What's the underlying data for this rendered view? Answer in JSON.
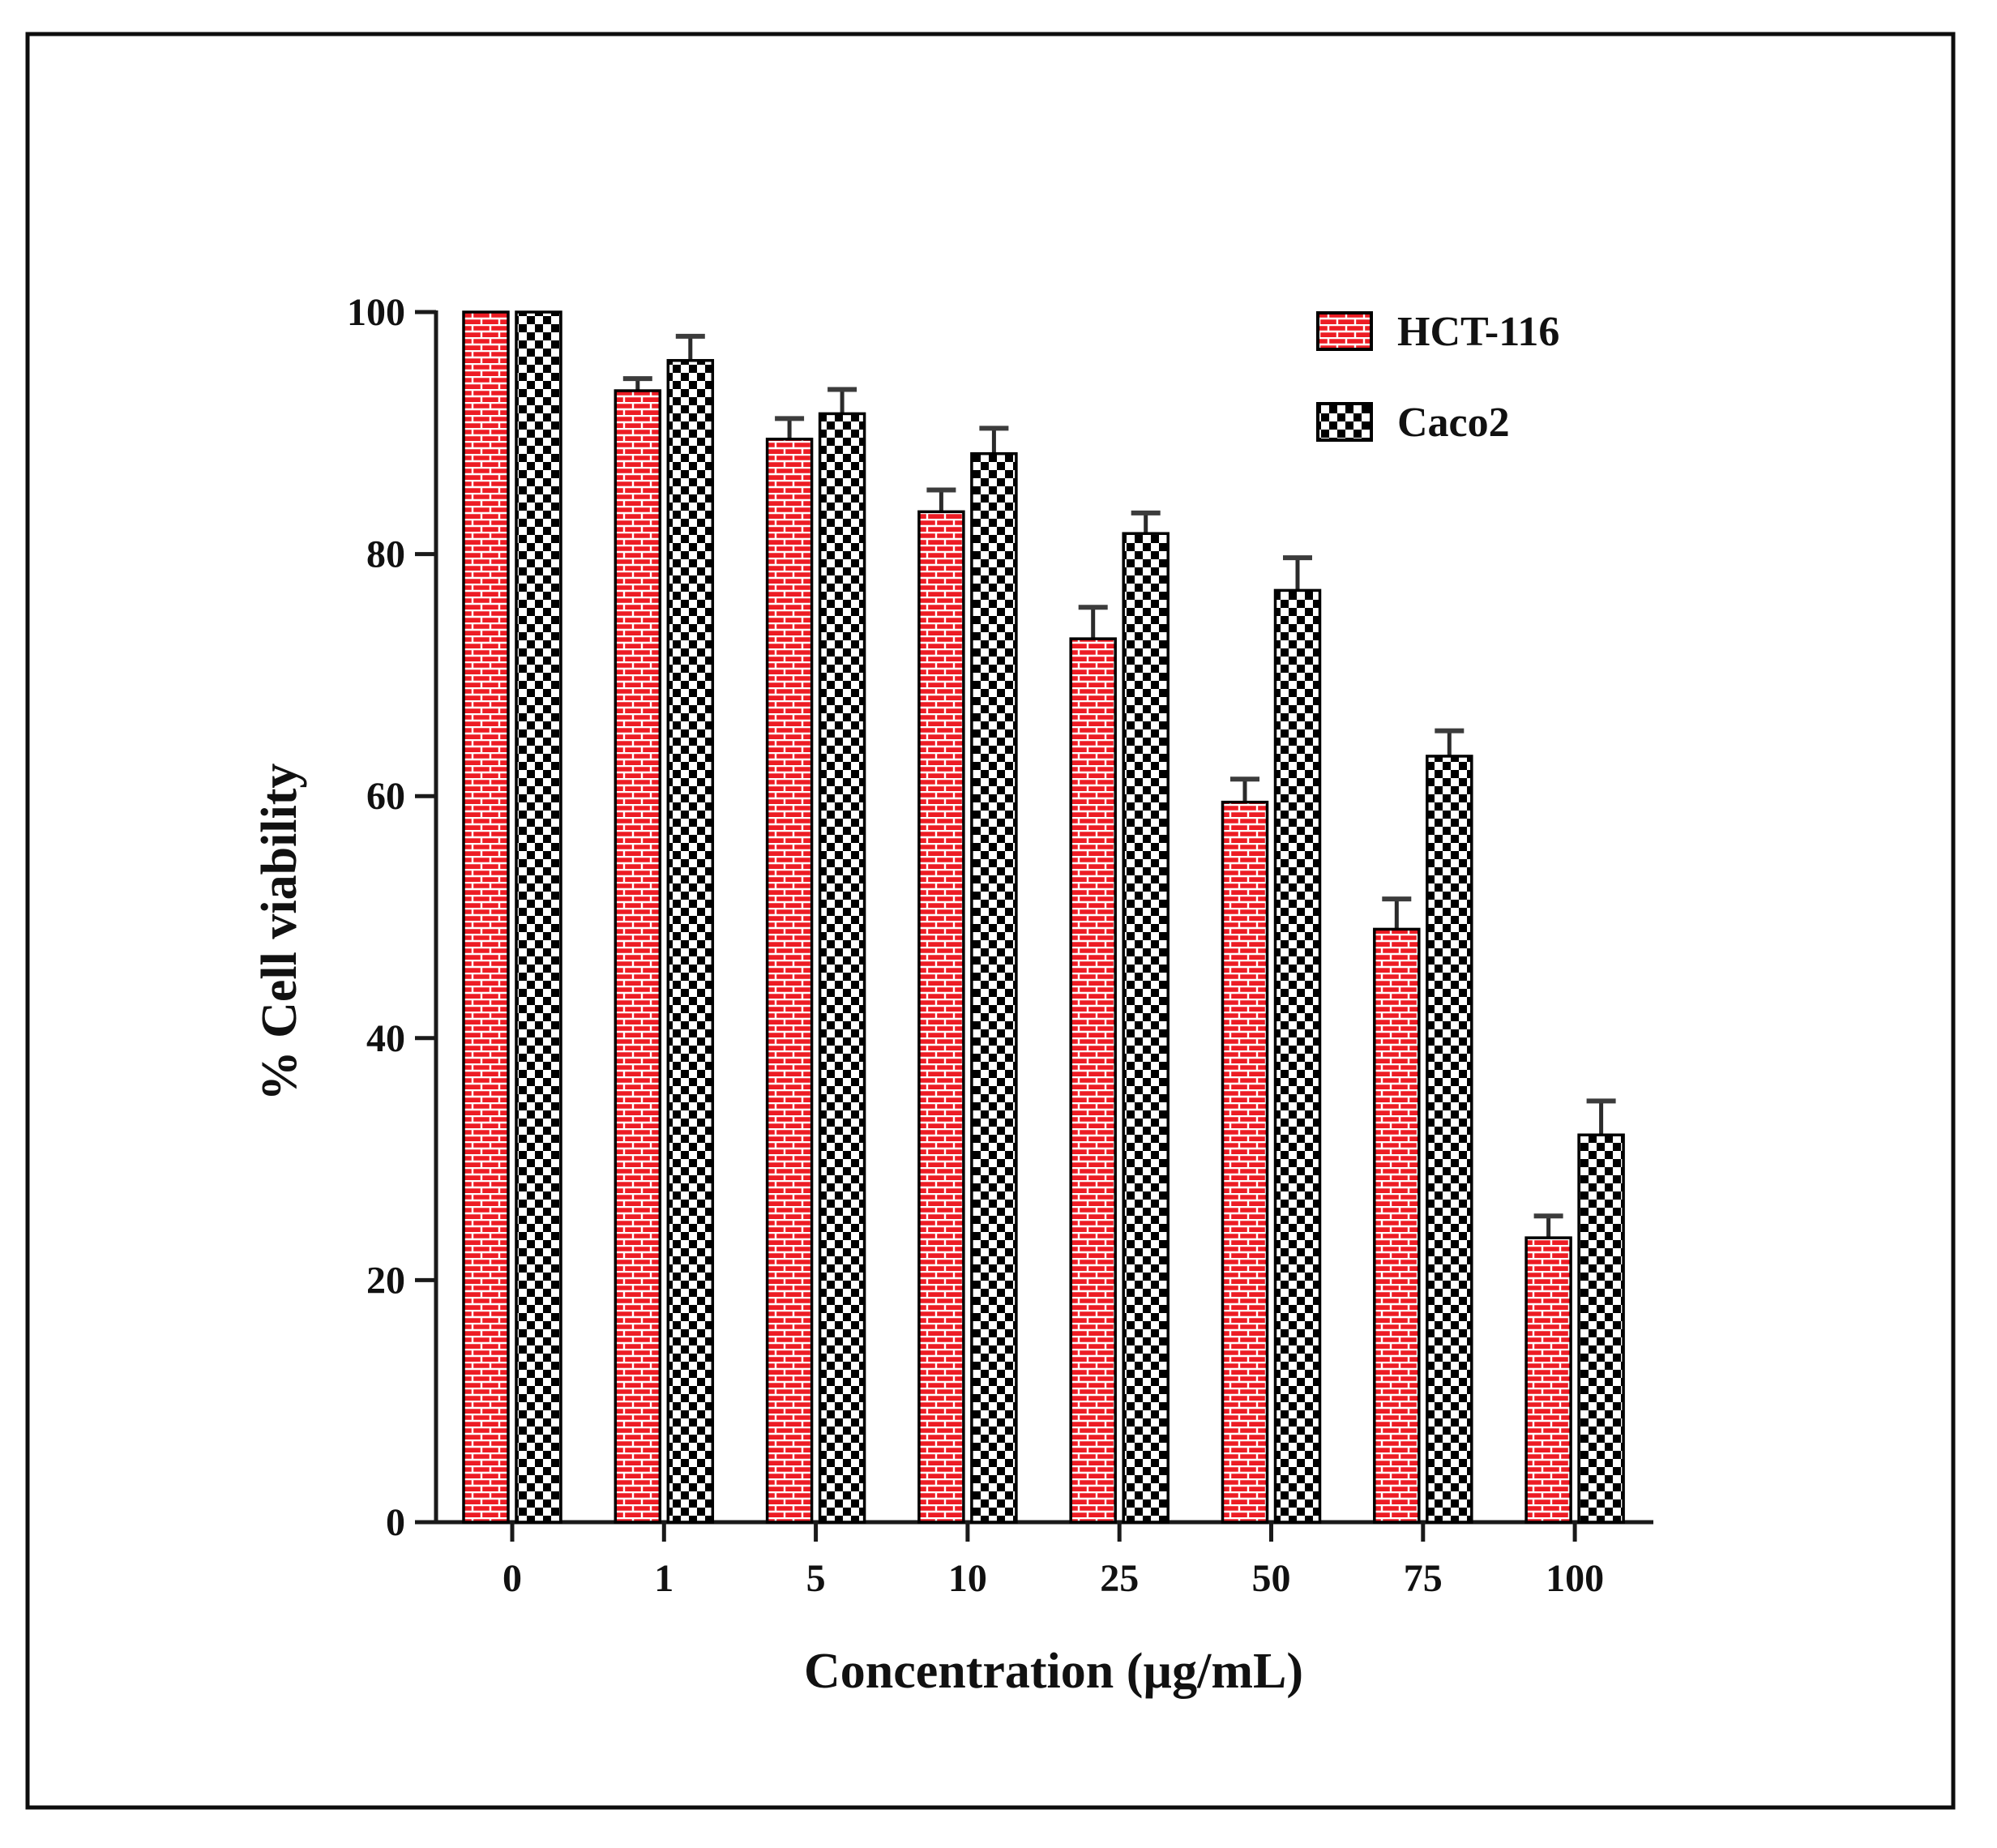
{
  "chart_data": {
    "type": "bar",
    "categories": [
      "0",
      "1",
      "5",
      "10",
      "25",
      "50",
      "75",
      "100"
    ],
    "series": [
      {
        "name": "HCT-116",
        "pattern": "brick",
        "color": "#ED1C24",
        "values": [
          100,
          93.5,
          89.5,
          83.5,
          73,
          59.5,
          49,
          23.5
        ],
        "errors": [
          0,
          1,
          1.7,
          1.8,
          2.6,
          1.9,
          2.5,
          1.8
        ]
      },
      {
        "name": "Caco2",
        "pattern": "checker",
        "color": "#000000",
        "values": [
          100,
          96,
          91.6,
          88.3,
          81.7,
          77,
          63.3,
          32
        ],
        "errors": [
          0,
          2,
          2,
          2.1,
          1.7,
          2.7,
          2.1,
          2.8
        ]
      }
    ],
    "title": "",
    "xlabel": "Concentration (µg/mL)",
    "ylabel": "% Cell viability",
    "ylim": [
      0,
      100
    ],
    "yticks": [
      0,
      20,
      40,
      60,
      80,
      100
    ],
    "grid": "off",
    "legend_position": "top-right-inside"
  }
}
